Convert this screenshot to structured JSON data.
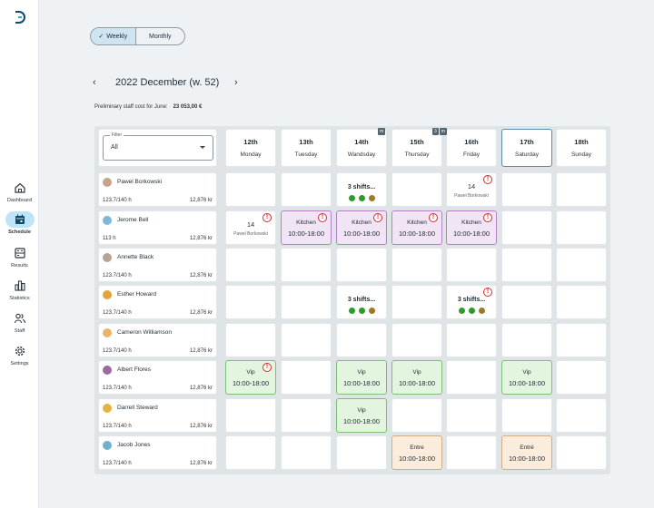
{
  "sidebar": {
    "items": [
      {
        "label": "Dashboard",
        "icon": "home-icon"
      },
      {
        "label": "Schedule",
        "icon": "calendar-icon",
        "active": true
      },
      {
        "label": "Results",
        "icon": "results-icon"
      },
      {
        "label": "Statistics",
        "icon": "bar-chart-icon"
      },
      {
        "label": "Staff",
        "icon": "people-icon"
      },
      {
        "label": "Settings",
        "icon": "gear-icon"
      }
    ]
  },
  "view_toggle": {
    "weekly": "Weekly",
    "monthly": "Monthly",
    "selected": "Weekly"
  },
  "week": {
    "title": "2022 December (w. 52)"
  },
  "cost": {
    "label": "Preliminary staff cost for June:",
    "value": "23 053,00 €"
  },
  "filter": {
    "label": "Filter",
    "value": "All"
  },
  "days": [
    {
      "date": "12th",
      "weekday": "Monday"
    },
    {
      "date": "13th",
      "weekday": "Tuesday"
    },
    {
      "date": "14th",
      "weekday": "Wandsday"
    },
    {
      "date": "15th",
      "weekday": "Thursday",
      "markers": [
        "m"
      ]
    },
    {
      "date": "16th",
      "weekday": "Friday",
      "markers": [
        "3",
        "m"
      ]
    },
    {
      "date": "17th",
      "weekday": "Saturday",
      "today": true
    },
    {
      "date": "18th",
      "weekday": "Sunday"
    }
  ],
  "employees": [
    {
      "name": "Pawel Borkowski",
      "hours": "123.7/140 h",
      "cost": "12,876 kr",
      "avatar_color": "#c9a38c"
    },
    {
      "name": "Jerome Bell",
      "hours": "113 h",
      "cost": "12,876 kr",
      "avatar_color": "#7fb8d8"
    },
    {
      "name": "Annette Black",
      "hours": "123.7/140 h",
      "cost": "12,876 kr",
      "avatar_color": "#b9a392"
    },
    {
      "name": "Esther Howard",
      "hours": "123.7/140 h",
      "cost": "12,876 kr",
      "avatar_color": "#e0a43a"
    },
    {
      "name": "Cameron Williamson",
      "hours": "123.7/140 h",
      "cost": "12,876 kr",
      "avatar_color": "#e6b56a"
    },
    {
      "name": "Albert Flores",
      "hours": "123.7/140 h",
      "cost": "12,876 kr",
      "avatar_color": "#9a6aa0"
    },
    {
      "name": "Darrell Steward",
      "hours": "123.7/140 h",
      "cost": "12,876 kr",
      "avatar_color": "#e9b23f"
    },
    {
      "name": "Jacob Jones",
      "hours": "123.7/140 h",
      "cost": "12,876 kr",
      "avatar_color": "#6fb2c9"
    }
  ],
  "shifts": [
    {
      "row": 0,
      "day": 2,
      "kind": "multi",
      "title": "3 shifts...",
      "dots": [
        "#2e9a2e",
        "#2e9a2e",
        "#9b7a2a"
      ]
    },
    {
      "row": 0,
      "day": 4,
      "kind": "off",
      "num": "14",
      "person": "Pawel Borkowski",
      "alert": true
    },
    {
      "row": 1,
      "day": 0,
      "kind": "off",
      "num": "14",
      "person": "Pawel Borkowski",
      "alert": true
    },
    {
      "row": 1,
      "day": 1,
      "kind": "shift",
      "color": "purple",
      "title": "Kitchen",
      "time": "10:00-18:00",
      "alert": true
    },
    {
      "row": 1,
      "day": 2,
      "kind": "shift",
      "color": "purple",
      "title": "Kitchen",
      "time": "10:00-18:00",
      "alert": true
    },
    {
      "row": 1,
      "day": 3,
      "kind": "shift",
      "color": "purple",
      "title": "Kitchen",
      "time": "10:00-18:00",
      "alert": true
    },
    {
      "row": 1,
      "day": 4,
      "kind": "shift",
      "color": "purple",
      "title": "Kitchen",
      "time": "10:00-18:00",
      "alert": true
    },
    {
      "row": 3,
      "day": 2,
      "kind": "multi",
      "title": "3 shifts...",
      "dots": [
        "#2e9a2e",
        "#2e9a2e",
        "#9b7a2a"
      ]
    },
    {
      "row": 3,
      "day": 4,
      "kind": "multi",
      "title": "3 shifts...",
      "dots": [
        "#2e9a2e",
        "#2e9a2e",
        "#9b7a2a"
      ],
      "alert": true
    },
    {
      "row": 5,
      "day": 0,
      "kind": "shift",
      "color": "green",
      "title": "Vip",
      "time": "10:00-18:00",
      "alert": true
    },
    {
      "row": 5,
      "day": 2,
      "kind": "shift",
      "color": "green",
      "title": "Vip",
      "time": "10:00-18:00"
    },
    {
      "row": 5,
      "day": 3,
      "kind": "shift",
      "color": "green",
      "title": "Vip",
      "time": "10:00-18:00"
    },
    {
      "row": 5,
      "day": 5,
      "kind": "shift",
      "color": "green",
      "title": "Vip",
      "time": "10:00-18:00"
    },
    {
      "row": 6,
      "day": 2,
      "kind": "shift",
      "color": "green",
      "title": "Vip",
      "time": "10:00-18:00"
    },
    {
      "row": 7,
      "day": 3,
      "kind": "shift",
      "color": "orange",
      "title": "Entre",
      "time": "10:00-18:00"
    },
    {
      "row": 7,
      "day": 5,
      "kind": "shift",
      "color": "orange",
      "title": "Entré",
      "time": "10:00-18:00"
    }
  ],
  "alert_symbol": "!",
  "colors": {
    "purple": "#b681c6",
    "green": "#7ebf77",
    "orange": "#d4ad86",
    "accent": "#bfe3f7"
  }
}
